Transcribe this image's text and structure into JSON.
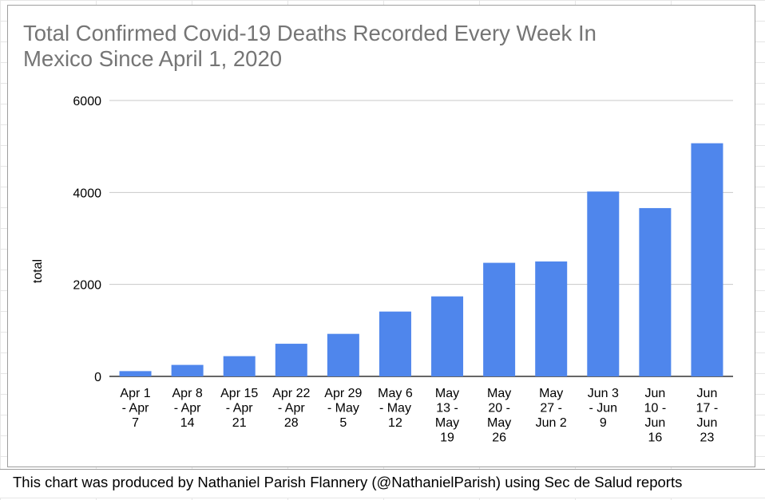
{
  "chart_data": {
    "type": "bar",
    "title": "Total Confirmed Covid-19 Deaths Recorded Every Week In Mexico Since April 1, 2020",
    "title_lines": [
      "Total Confirmed Covid-19 Deaths Recorded Every Week In",
      "Mexico Since April 1, 2020"
    ],
    "xlabel": "",
    "ylabel": "total",
    "ylim": [
      0,
      6000
    ],
    "yticks": [
      0,
      2000,
      4000,
      6000
    ],
    "grid": true,
    "bar_color": "#4f86ec",
    "categories": [
      "Apr 1 - Apr 7",
      "Apr 8 - Apr 14",
      "Apr 15 - Apr 21",
      "Apr 22 - Apr 28",
      "Apr 29 - May 5",
      "May 6 - May 12",
      "May 13 - May 19",
      "May 20 - May 26",
      "May 27 - Jun 2",
      "Jun 3 - Jun 9",
      "Jun 10 - Jun 16",
      "Jun 17 - Jun 23"
    ],
    "category_lines": [
      [
        "Apr 1",
        "-  Apr",
        "7"
      ],
      [
        "Apr 8",
        "-   Apr",
        "14"
      ],
      [
        "Apr 15",
        "- Apr",
        "21"
      ],
      [
        "Apr 22",
        "- Apr",
        "28"
      ],
      [
        "Apr 29",
        "- May",
        "5"
      ],
      [
        "May 6",
        "- May",
        "12"
      ],
      [
        "May",
        "13 -",
        "May",
        "19"
      ],
      [
        "May",
        "20 -",
        "May",
        "26"
      ],
      [
        "May",
        "27 -",
        "Jun 2"
      ],
      [
        "Jun 3",
        "- Jun",
        "9"
      ],
      [
        "Jun",
        "10 -",
        "Jun",
        "16"
      ],
      [
        "Jun",
        "17 -",
        "Jun",
        "23"
      ]
    ],
    "values": [
      115,
      250,
      440,
      710,
      925,
      1410,
      1740,
      2470,
      2500,
      4020,
      3660,
      5070
    ]
  },
  "caption": "This chart was produced by Nathaniel Parish Flannery (@NathanielParish) using Sec de Salud reports"
}
